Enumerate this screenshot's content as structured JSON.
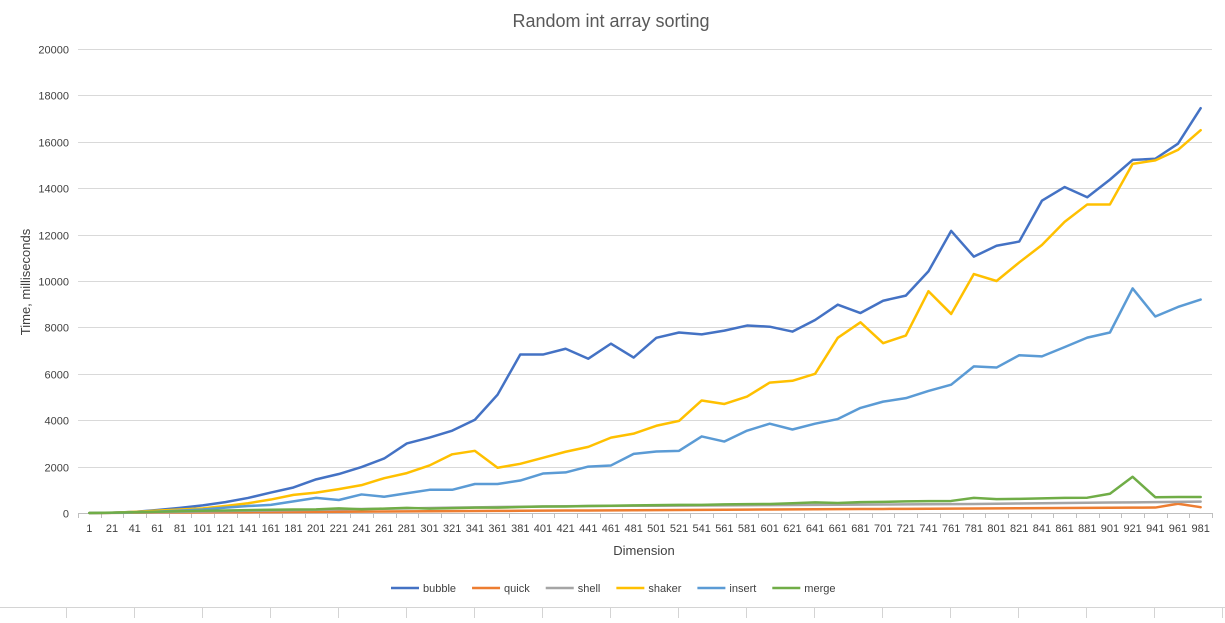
{
  "chart_data": {
    "type": "line",
    "title": "Random int array sorting",
    "xlabel": "Dimension",
    "ylabel": "Time, milliseconds",
    "ylim": [
      0,
      20000
    ],
    "y_ticks": [
      0,
      2000,
      4000,
      6000,
      8000,
      10000,
      12000,
      14000,
      16000,
      18000,
      20000
    ],
    "grid": true,
    "legend": "bottom",
    "categories": [
      "1",
      "21",
      "41",
      "61",
      "81",
      "101",
      "121",
      "141",
      "161",
      "181",
      "201",
      "221",
      "241",
      "261",
      "281",
      "301",
      "321",
      "341",
      "361",
      "381",
      "401",
      "421",
      "441",
      "461",
      "481",
      "501",
      "521",
      "541",
      "561",
      "581",
      "601",
      "621",
      "641",
      "661",
      "681",
      "701",
      "721",
      "741",
      "761",
      "781",
      "801",
      "821",
      "841",
      "861",
      "881",
      "901",
      "921",
      "941",
      "961",
      "981"
    ],
    "series": [
      {
        "name": "bubble",
        "color": "#4472C4",
        "values": [
          0,
          10,
          50,
          130,
          220,
          330,
          470,
          650,
          880,
          1100,
          1450,
          1680,
          1980,
          2350,
          3000,
          3250,
          3550,
          4020,
          5100,
          6830,
          6830,
          7080,
          6650,
          7300,
          6700,
          7550,
          7780,
          7700,
          7860,
          8080,
          8030,
          7820,
          8320,
          8980,
          8620,
          9150,
          9370,
          10420,
          12160,
          11050,
          11520,
          11700,
          13460,
          14050,
          13610,
          14370,
          15220,
          15270,
          15920,
          17450
        ]
      },
      {
        "name": "quick",
        "color": "#ED7D31",
        "values": [
          0,
          5,
          10,
          15,
          20,
          25,
          30,
          35,
          40,
          45,
          50,
          55,
          60,
          65,
          70,
          75,
          80,
          85,
          90,
          95,
          100,
          105,
          110,
          115,
          120,
          125,
          130,
          135,
          140,
          145,
          150,
          155,
          160,
          165,
          170,
          175,
          180,
          185,
          190,
          195,
          200,
          205,
          210,
          215,
          220,
          225,
          230,
          235,
          400,
          250
        ]
      },
      {
        "name": "shell",
        "color": "#A5A5A5",
        "values": [
          0,
          10,
          20,
          35,
          50,
          65,
          80,
          95,
          110,
          125,
          140,
          155,
          170,
          185,
          200,
          215,
          230,
          245,
          260,
          270,
          280,
          290,
          300,
          305,
          310,
          315,
          320,
          325,
          330,
          335,
          340,
          345,
          350,
          355,
          360,
          365,
          370,
          375,
          380,
          390,
          400,
          410,
          420,
          430,
          440,
          450,
          460,
          470,
          480,
          490
        ]
      },
      {
        "name": "shaker",
        "color": "#FFC000",
        "values": [
          0,
          10,
          50,
          100,
          150,
          200,
          300,
          420,
          580,
          780,
          880,
          1030,
          1200,
          1500,
          1720,
          2050,
          2530,
          2680,
          1950,
          2120,
          2380,
          2640,
          2850,
          3250,
          3420,
          3760,
          3970,
          4850,
          4700,
          5020,
          5620,
          5700,
          6000,
          7550,
          8220,
          7320,
          7650,
          9560,
          8580,
          10300,
          10000,
          10800,
          11550,
          12550,
          13300,
          13300,
          15050,
          15200,
          15650,
          16500
        ]
      },
      {
        "name": "insert",
        "color": "#5B9BD5",
        "values": [
          0,
          10,
          30,
          60,
          100,
          150,
          230,
          300,
          350,
          500,
          650,
          560,
          800,
          700,
          850,
          1000,
          1000,
          1250,
          1250,
          1400,
          1700,
          1750,
          2000,
          2050,
          2550,
          2650,
          2680,
          3300,
          3080,
          3550,
          3850,
          3600,
          3850,
          4050,
          4530,
          4800,
          4950,
          5260,
          5530,
          6320,
          6270,
          6800,
          6750,
          7150,
          7560,
          7780,
          9680,
          8470,
          8880,
          9200
        ]
      },
      {
        "name": "merge",
        "color": "#70AD47",
        "values": [
          0,
          15,
          35,
          55,
          75,
          95,
          110,
          125,
          140,
          150,
          155,
          200,
          160,
          190,
          220,
          190,
          210,
          230,
          230,
          260,
          280,
          280,
          300,
          310,
          330,
          340,
          350,
          350,
          370,
          380,
          390,
          420,
          460,
          430,
          470,
          480,
          500,
          510,
          520,
          650,
          600,
          610,
          630,
          650,
          660,
          830,
          1560,
          680,
          690,
          690
        ]
      }
    ]
  }
}
